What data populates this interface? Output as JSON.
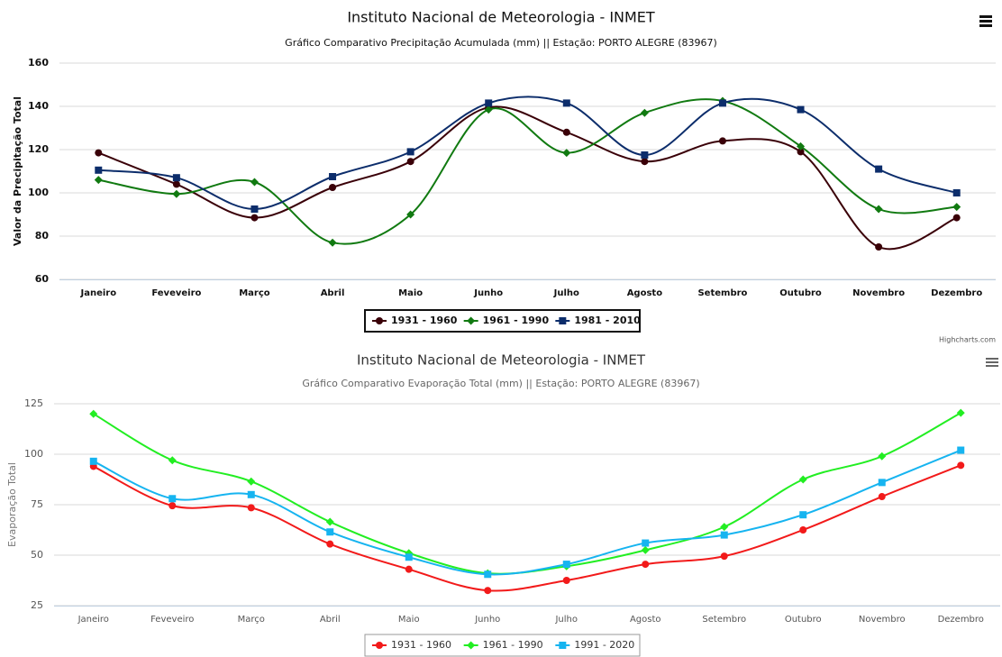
{
  "chart_data": [
    {
      "type": "line",
      "title": "Instituto Nacional de Meteorologia - INMET",
      "subtitle": "Gráfico Comparativo Precipitação Acumulada (mm) || Estação: PORTO ALEGRE (83967)",
      "y_label": "Valor da Precipitação Total",
      "credits": "Highcharts.com",
      "categories": [
        "Janeiro",
        "Feveveiro",
        "Março",
        "Abril",
        "Maio",
        "Junho",
        "Julho",
        "Agosto",
        "Setembro",
        "Outubro",
        "Novembro",
        "Dezembro"
      ],
      "ylim": [
        60,
        160
      ],
      "yticks": [
        60,
        80,
        100,
        120,
        140,
        160
      ],
      "grid": true,
      "smooth": true,
      "series": [
        {
          "name": "1931 - 1960",
          "color": "#3a0008",
          "marker": "circle",
          "values": [
            118.5,
            104,
            88.5,
            102.5,
            114.5,
            139.5,
            128,
            114.5,
            124,
            119,
            75,
            88.5
          ]
        },
        {
          "name": "1961 - 1990",
          "color": "#117a11",
          "marker": "diamond",
          "values": [
            106,
            99.5,
            105,
            77,
            90,
            138.5,
            118.5,
            137,
            142.5,
            121.5,
            92.5,
            93.5
          ]
        },
        {
          "name": "1981 - 2010",
          "color": "#0c2d6b",
          "marker": "square",
          "values": [
            110.5,
            107,
            92.5,
            107.5,
            119,
            141.5,
            141.5,
            117.5,
            141.5,
            138.5,
            111,
            100
          ]
        }
      ]
    },
    {
      "type": "line",
      "title": "Instituto Nacional de Meteorologia - INMET",
      "subtitle": "Gráfico Comparativo Evaporação Total (mm) || Estação: PORTO ALEGRE (83967)",
      "y_label": "Evaporação Total",
      "categories": [
        "Janeiro",
        "Feveveiro",
        "Março",
        "Abril",
        "Maio",
        "Junho",
        "Julho",
        "Agosto",
        "Setembro",
        "Outubro",
        "Novembro",
        "Dezembro"
      ],
      "ylim": [
        25,
        125
      ],
      "yticks": [
        25,
        50,
        75,
        100,
        125
      ],
      "grid": true,
      "smooth": true,
      "series": [
        {
          "name": "1931 - 1960",
          "color": "#f21a1a",
          "marker": "circle",
          "values": [
            94,
            74.5,
            73.5,
            55.5,
            43,
            32.5,
            37.5,
            45.5,
            49.5,
            62.5,
            79,
            94.5
          ]
        },
        {
          "name": "1961 - 1990",
          "color": "#22ee22",
          "marker": "diamond",
          "values": [
            120,
            97,
            86.5,
            66.5,
            51,
            41,
            44.5,
            52.5,
            64,
            87.5,
            99,
            120.5
          ]
        },
        {
          "name": "1991 - 2020",
          "color": "#16b4f0",
          "marker": "square",
          "values": [
            96.5,
            78,
            80,
            61.5,
            49,
            40.5,
            45.5,
            56,
            60,
            70,
            86,
            102
          ]
        }
      ]
    }
  ]
}
